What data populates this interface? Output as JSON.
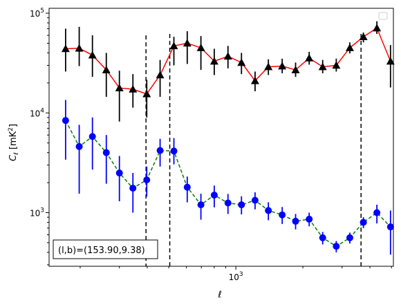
{
  "chart_data": {
    "type": "scatter",
    "xlabel": "ℓ",
    "ylabel": "C_ℓ  [mK²]",
    "xscale": "log",
    "yscale": "log",
    "xlim": [
      145,
      5100
    ],
    "ylim": [
      290,
      112000
    ],
    "x_tick_labels": [
      {
        "value": 1000,
        "base": "10",
        "exp": "3"
      }
    ],
    "y_tick_labels": [
      {
        "value": 1000,
        "base": "10",
        "exp": "3"
      },
      {
        "value": 10000,
        "base": "10",
        "exp": "4"
      },
      {
        "value": 100000,
        "base": "10",
        "exp": "5"
      }
    ],
    "vlines": [
      395,
      505,
      3650
    ],
    "vline_tops": [
      60000,
      62000,
      62000
    ],
    "annotation": "(l,b)=(153.90,9.38)",
    "series": [
      {
        "marker": "triangle",
        "color": "#000000",
        "line_color": "#ff0000",
        "line_style": "solid",
        "x": [
          172,
          198,
          227,
          262,
          300,
          345,
          398,
          457,
          527,
          605,
          697,
          800,
          922,
          1060,
          1220,
          1400,
          1615,
          1855,
          2135,
          2455,
          2825,
          3250,
          3740,
          4300,
          4950
        ],
        "y": [
          44000,
          44500,
          38000,
          27000,
          17800,
          17300,
          15500,
          24000,
          47000,
          50000,
          45000,
          33000,
          37000,
          32000,
          21000,
          29000,
          29500,
          27000,
          35500,
          29000,
          30000,
          45000,
          58000,
          71000,
          33000
        ],
        "err_low": [
          26000,
          29500,
          23000,
          14500,
          8200,
          11300,
          9000,
          14500,
          30000,
          31000,
          27000,
          24000,
          28000,
          24500,
          16500,
          24000,
          25000,
          23000,
          30500,
          25000,
          26000,
          39500,
          51000,
          62000,
          18000
        ],
        "err_high": [
          70000,
          73000,
          60000,
          40000,
          26500,
          24500,
          21500,
          34000,
          58000,
          66000,
          59000,
          44000,
          47000,
          40000,
          26000,
          34500,
          35000,
          32000,
          41000,
          34000,
          35000,
          51000,
          64000,
          83000,
          48000
        ]
      },
      {
        "marker": "circle",
        "color": "#0000ff",
        "line_color": "#008000",
        "line_style": "dashed",
        "x": [
          172,
          198,
          227,
          262,
          300,
          345,
          398,
          457,
          527,
          605,
          697,
          800,
          922,
          1060,
          1220,
          1400,
          1615,
          1855,
          2135,
          2455,
          2825,
          3250,
          3740,
          4300,
          4950
        ],
        "y": [
          8400,
          4600,
          5800,
          4000,
          2500,
          1760,
          2130,
          4200,
          4150,
          1800,
          1200,
          1500,
          1250,
          1200,
          1330,
          1050,
          950,
          820,
          860,
          560,
          460,
          560,
          800,
          1000,
          720
        ],
        "err_low": [
          3400,
          1550,
          2700,
          1950,
          1300,
          1000,
          1450,
          2900,
          3050,
          1270,
          850,
          1130,
          970,
          960,
          1080,
          840,
          770,
          680,
          730,
          480,
          400,
          490,
          700,
          780,
          380
        ],
        "err_high": [
          13500,
          7600,
          9000,
          6000,
          3700,
          2500,
          2900,
          5500,
          5600,
          2300,
          1550,
          1870,
          1540,
          1460,
          1600,
          1270,
          1140,
          970,
          1000,
          640,
          520,
          630,
          900,
          1200,
          1050
        ]
      }
    ],
    "legend": {
      "placement": "top-right",
      "entries": []
    }
  }
}
